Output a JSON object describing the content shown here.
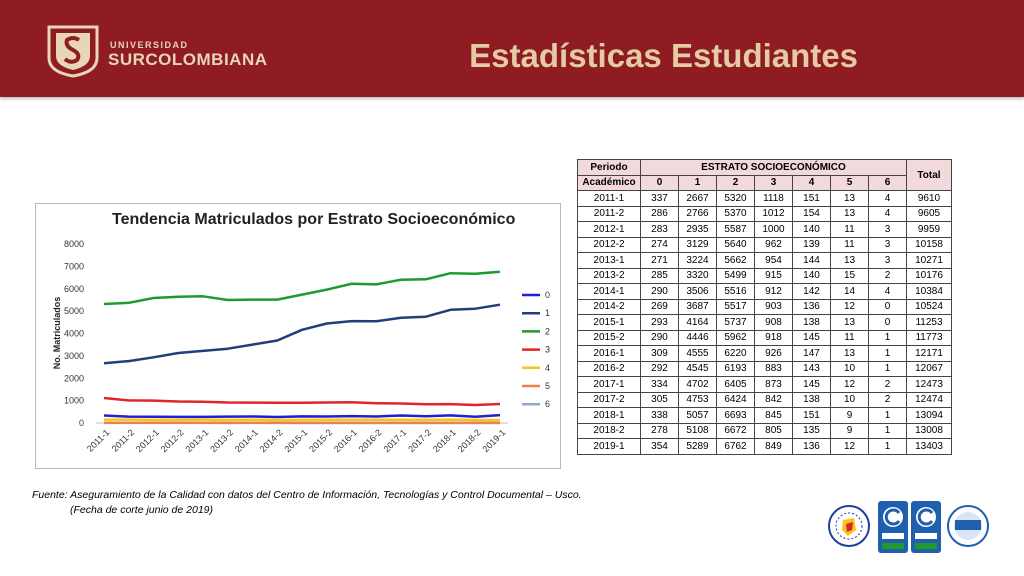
{
  "header": {
    "university_small": "UNIVERSIDAD",
    "university_big": "SURCOLOMBIANA",
    "title": "Estadísticas Estudiantes"
  },
  "table": {
    "head_period": "Periodo",
    "head_period2": "Académico",
    "head_group": "ESTRATO SOCIOECONÓMICO",
    "head_total": "Total",
    "strata": [
      "0",
      "1",
      "2",
      "3",
      "4",
      "5",
      "6"
    ],
    "rows": [
      [
        "2011-1",
        "337",
        "2667",
        "5320",
        "1118",
        "151",
        "13",
        "4",
        "9610"
      ],
      [
        "2011-2",
        "286",
        "2766",
        "5370",
        "1012",
        "154",
        "13",
        "4",
        "9605"
      ],
      [
        "2012-1",
        "283",
        "2935",
        "5587",
        "1000",
        "140",
        "11",
        "3",
        "9959"
      ],
      [
        "2012-2",
        "274",
        "3129",
        "5640",
        "962",
        "139",
        "11",
        "3",
        "10158"
      ],
      [
        "2013-1",
        "271",
        "3224",
        "5662",
        "954",
        "144",
        "13",
        "3",
        "10271"
      ],
      [
        "2013-2",
        "285",
        "3320",
        "5499",
        "915",
        "140",
        "15",
        "2",
        "10176"
      ],
      [
        "2014-1",
        "290",
        "3506",
        "5516",
        "912",
        "142",
        "14",
        "4",
        "10384"
      ],
      [
        "2014-2",
        "269",
        "3687",
        "5517",
        "903",
        "136",
        "12",
        "0",
        "10524"
      ],
      [
        "2015-1",
        "293",
        "4164",
        "5737",
        "908",
        "138",
        "13",
        "0",
        "11253"
      ],
      [
        "2015-2",
        "290",
        "4446",
        "5962",
        "918",
        "145",
        "11",
        "1",
        "11773"
      ],
      [
        "2016-1",
        "309",
        "4555",
        "6220",
        "926",
        "147",
        "13",
        "1",
        "12171"
      ],
      [
        "2016-2",
        "292",
        "4545",
        "6193",
        "883",
        "143",
        "10",
        "1",
        "12067"
      ],
      [
        "2017-1",
        "334",
        "4702",
        "6405",
        "873",
        "145",
        "12",
        "2",
        "12473"
      ],
      [
        "2017-2",
        "305",
        "4753",
        "6424",
        "842",
        "138",
        "10",
        "2",
        "12474"
      ],
      [
        "2018-1",
        "338",
        "5057",
        "6693",
        "845",
        "151",
        "9",
        "1",
        "13094"
      ],
      [
        "2018-2",
        "278",
        "5108",
        "6672",
        "805",
        "135",
        "9",
        "1",
        "13008"
      ],
      [
        "2019-1",
        "354",
        "5289",
        "6762",
        "849",
        "136",
        "12",
        "1",
        "13403"
      ]
    ]
  },
  "chart_data": {
    "type": "line",
    "title": "Tendencia Matriculados por Estrato Socioeconómico",
    "xlabel": "",
    "ylabel": "No. Matriculados",
    "ylim": [
      0,
      8000
    ],
    "yticks": [
      "0",
      "1000",
      "2000",
      "3000",
      "4000",
      "5000",
      "6000",
      "7000",
      "8000"
    ],
    "categories": [
      "2011-1",
      "2011-2",
      "2012-1",
      "2012-2",
      "2013-1",
      "2013-2",
      "2014-1",
      "2014-2",
      "2015-1",
      "2015-2",
      "2016-1",
      "2016-2",
      "2017-1",
      "2017-2",
      "2018-1",
      "2018-2",
      "2019-1"
    ],
    "legend_position": "right",
    "grid": false,
    "series": [
      {
        "name": "0",
        "color": "#1f1fd6",
        "values": [
          337,
          286,
          283,
          274,
          271,
          285,
          290,
          269,
          293,
          290,
          309,
          292,
          334,
          305,
          338,
          278,
          354
        ]
      },
      {
        "name": "1",
        "color": "#1f3f7a",
        "values": [
          2667,
          2766,
          2935,
          3129,
          3224,
          3320,
          3506,
          3687,
          4164,
          4446,
          4555,
          4545,
          4702,
          4753,
          5057,
          5108,
          5289
        ]
      },
      {
        "name": "2",
        "color": "#1f9a2f",
        "values": [
          5320,
          5370,
          5587,
          5640,
          5662,
          5499,
          5516,
          5517,
          5737,
          5962,
          6220,
          6193,
          6405,
          6424,
          6693,
          6672,
          6762
        ]
      },
      {
        "name": "3",
        "color": "#e0262b",
        "values": [
          1118,
          1012,
          1000,
          962,
          954,
          915,
          912,
          903,
          908,
          918,
          926,
          883,
          873,
          842,
          845,
          805,
          849
        ]
      },
      {
        "name": "4",
        "color": "#f5c518",
        "values": [
          151,
          154,
          140,
          139,
          144,
          140,
          142,
          136,
          138,
          145,
          147,
          143,
          145,
          138,
          151,
          135,
          136
        ]
      },
      {
        "name": "5",
        "color": "#e8844a",
        "values": [
          13,
          13,
          11,
          11,
          13,
          15,
          14,
          12,
          13,
          11,
          13,
          10,
          12,
          10,
          9,
          9,
          12
        ]
      },
      {
        "name": "6",
        "color": "#8fa8d8",
        "values": [
          4,
          4,
          3,
          3,
          3,
          2,
          4,
          0,
          0,
          1,
          1,
          1,
          2,
          2,
          1,
          1,
          1
        ]
      }
    ]
  },
  "footer": {
    "source_line1": "Fuente: Aseguramiento de la Calidad con datos del Centro de Información, Tecnologías y Control Documental – Usco.",
    "source_line2": "(Fecha de corte junio de 2019)"
  }
}
